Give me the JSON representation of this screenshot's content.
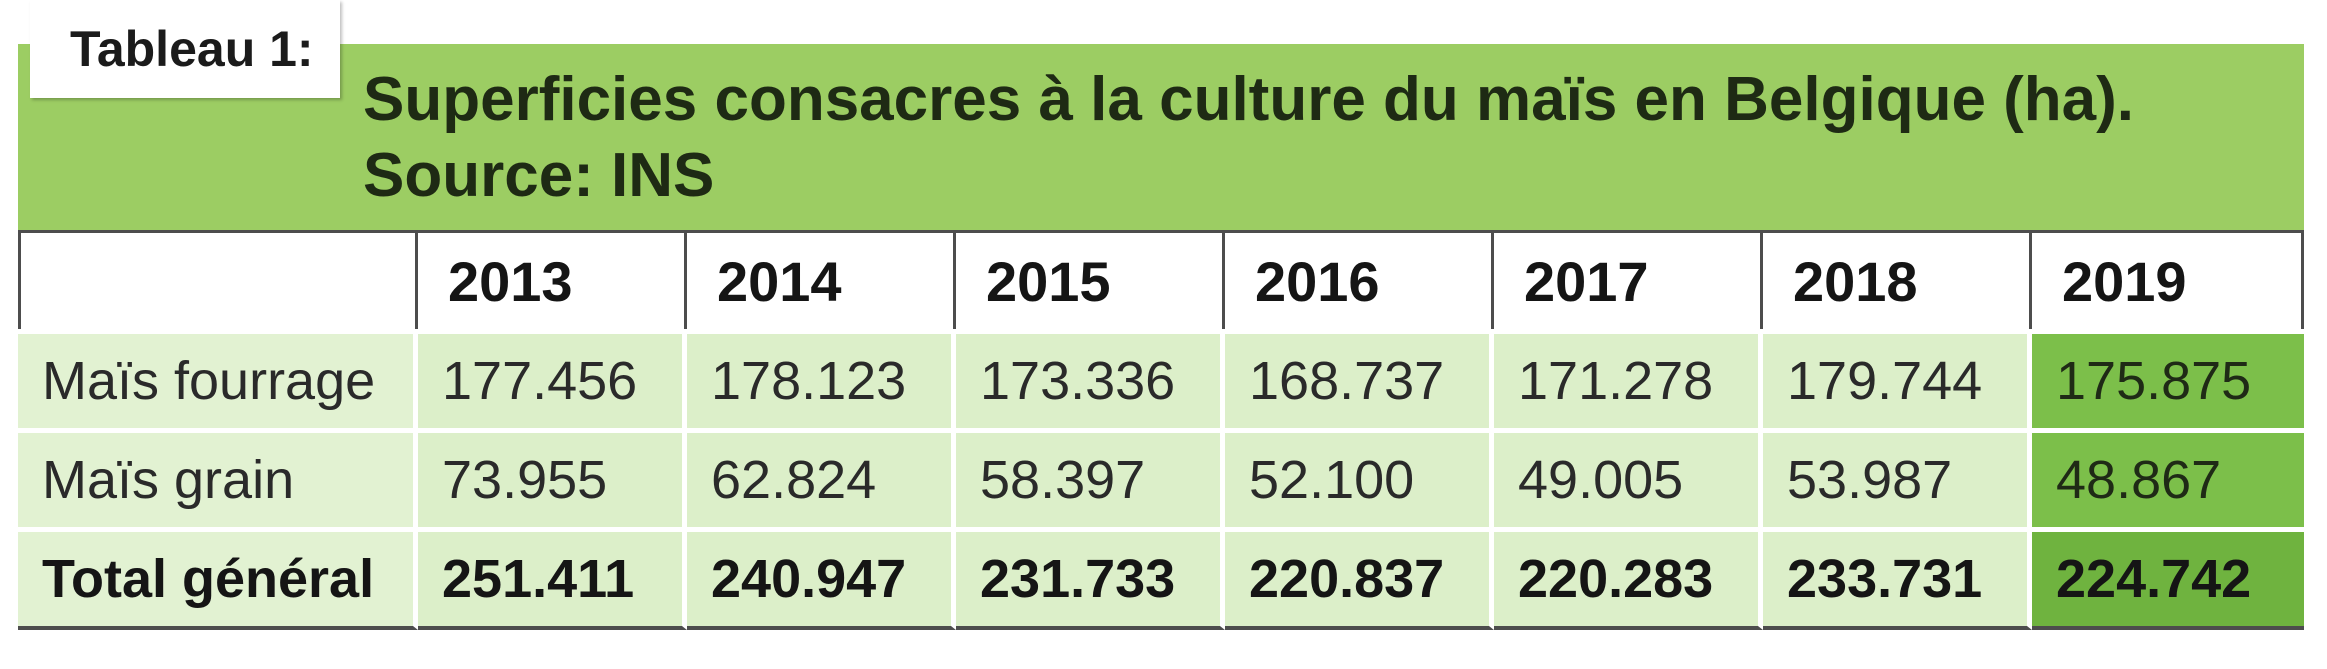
{
  "tag": "Tableau 1:",
  "title": {
    "line1": "Superficies consacres à la culture du maïs en Belgique (ha).",
    "line2": "Source: INS"
  },
  "table": {
    "years": [
      "2013",
      "2014",
      "2015",
      "2016",
      "2017",
      "2018",
      "2019"
    ],
    "rows": [
      {
        "label": "Maïs fourrage",
        "values": [
          "177.456",
          "178.123",
          "173.336",
          "168.737",
          "171.278",
          "179.744",
          "175.875"
        ]
      },
      {
        "label": "Maïs grain",
        "values": [
          "73.955",
          "62.824",
          "58.397",
          "52.100",
          "49.005",
          "53.987",
          "48.867"
        ]
      },
      {
        "label": "Total général",
        "values": [
          "251.411",
          "240.947",
          "231.733",
          "220.837",
          "220.283",
          "233.731",
          "224.742"
        ]
      }
    ]
  },
  "colors": {
    "header_band": "#9ccd63",
    "row_bg": "#dcefc9",
    "highlight_column": "#7cbf4a"
  }
}
